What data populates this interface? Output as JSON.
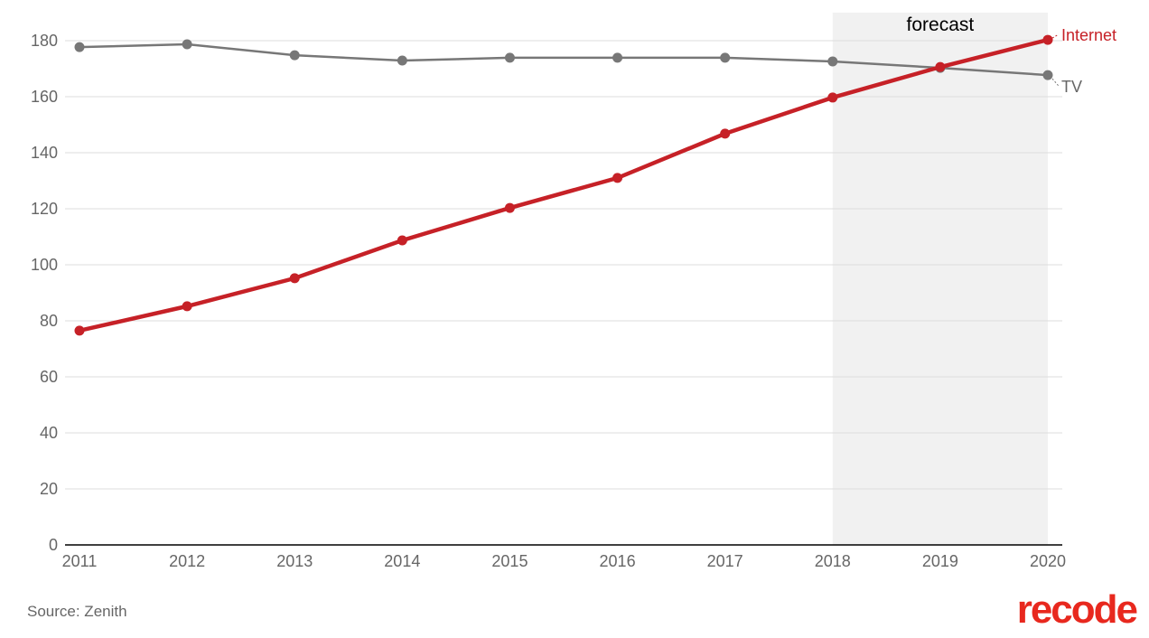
{
  "chart_data": {
    "type": "line",
    "x": [
      2011,
      2012,
      2013,
      2014,
      2015,
      2016,
      2017,
      2018,
      2019,
      2020
    ],
    "series": [
      {
        "name": "TV",
        "color": "#777777",
        "values": [
          177.7,
          178.7,
          174.8,
          172.9,
          173.9,
          173.9,
          173.9,
          172.6,
          170.3,
          167.7
        ]
      },
      {
        "name": "Internet",
        "color": "#c62127",
        "values": [
          76.5,
          85.2,
          95.2,
          108.7,
          120.3,
          131.0,
          146.8,
          159.7,
          170.6,
          180.3
        ]
      }
    ],
    "ylim": [
      0,
      180
    ],
    "yticks": [
      0,
      20,
      40,
      60,
      80,
      100,
      120,
      140,
      160,
      180
    ],
    "xticks": [
      "2011",
      "2012",
      "2013",
      "2014",
      "2015",
      "2016",
      "2017",
      "2018",
      "2019",
      "2020"
    ],
    "grid": true,
    "shaded_region": {
      "from": 2018,
      "to": 2020,
      "label": "forecast",
      "color": "#f1f1f1"
    },
    "legend": "inline-labels-right"
  },
  "source": "Source: Zenith",
  "logo": "recode",
  "logo_color": "#e8281e"
}
